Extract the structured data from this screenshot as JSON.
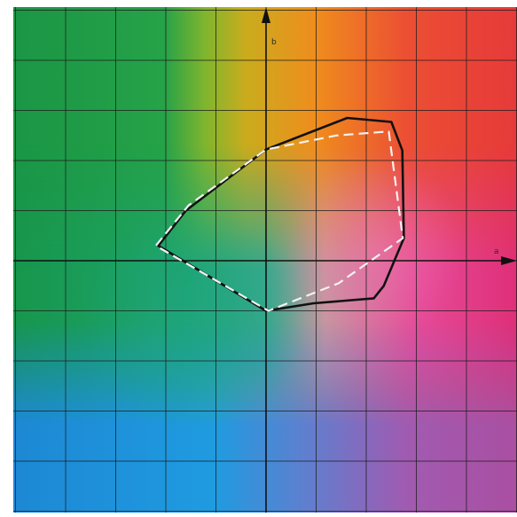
{
  "diagram": {
    "axes": {
      "horizontal_label": "a",
      "vertical_label": "b"
    },
    "colors": {
      "background_gradient_corners": {
        "top_left": "#1e9a4a",
        "top_right": "#e63a3a",
        "bottom_left": "#1f86d6",
        "bottom_right": "#a24fa8"
      },
      "green_field": "#19a04c",
      "teal_field": "#1fa58a",
      "yellow_band": "#d8b21c",
      "orange_band": "#ef8a1e",
      "magenta_field": "#e2489a",
      "cyan_field": "#1c9fd8",
      "purple_field": "#8e5ab0",
      "grid_line": "#1c1c1c",
      "axis_color": "#111111",
      "gamut_solid": "#111111",
      "gamut_dashed": "#f2f2f2"
    },
    "gamut_outlines": [
      {
        "style": "solid",
        "vertices_ab": [
          [
            1.62,
            2.85
          ],
          [
            2.5,
            2.77
          ],
          [
            2.72,
            2.2
          ],
          [
            2.75,
            0.45
          ],
          [
            2.35,
            -0.5
          ],
          [
            2.15,
            -0.75
          ],
          [
            0.95,
            -0.85
          ],
          [
            0.0,
            -1.0
          ],
          [
            -2.15,
            0.3
          ],
          [
            -1.6,
            1.0
          ],
          [
            0.0,
            2.22
          ]
        ]
      },
      {
        "style": "dashed",
        "vertices_ab": [
          [
            2.45,
            2.58
          ],
          [
            2.73,
            0.45
          ],
          [
            1.45,
            -0.45
          ],
          [
            0.05,
            -1.0
          ],
          [
            -2.2,
            0.3
          ],
          [
            -1.55,
            1.1
          ],
          [
            0.0,
            2.22
          ],
          [
            1.4,
            2.5
          ]
        ]
      }
    ]
  }
}
